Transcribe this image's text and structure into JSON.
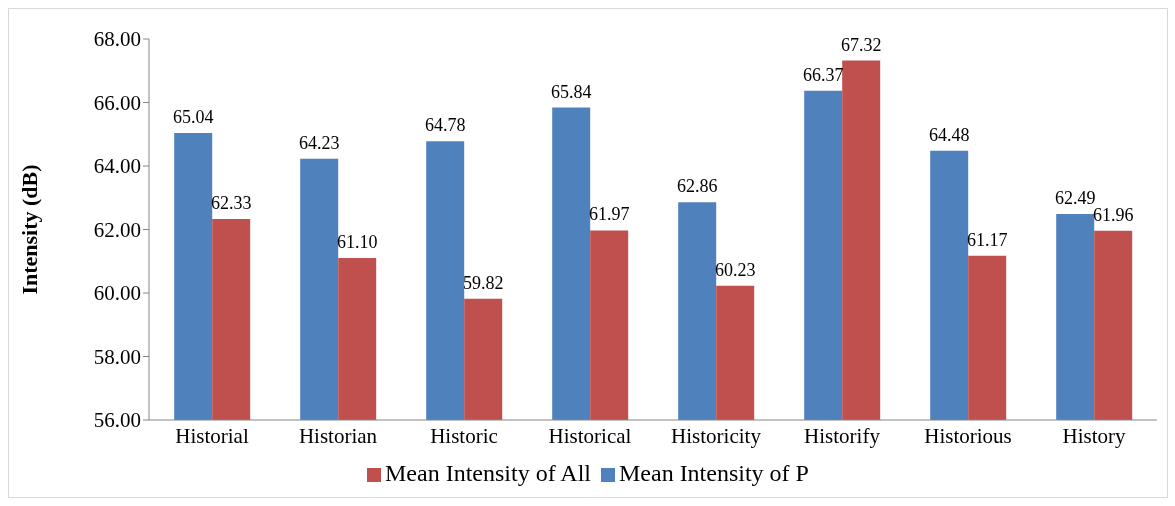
{
  "chart_data": {
    "type": "bar",
    "ylabel": "Intensity (dB)",
    "categories": [
      "Historial",
      "Historian",
      "Historic",
      "Historical",
      "Historicity",
      "Historify",
      "Historious",
      "History"
    ],
    "series": [
      {
        "name": "Mean Intensity of P",
        "color": "#4f81bd",
        "values": [
          65.04,
          64.23,
          64.78,
          65.84,
          62.86,
          66.37,
          64.48,
          62.49
        ],
        "value_labels": [
          "65.04",
          "64.23",
          "64.78",
          "65.84",
          "62.86",
          "66.37",
          "64.48",
          "62.49"
        ]
      },
      {
        "name": "Mean Intensity of All",
        "color": "#c0504d",
        "values": [
          62.33,
          61.1,
          59.82,
          61.97,
          60.23,
          67.32,
          61.17,
          61.96
        ],
        "value_labels": [
          "62.33",
          "61.10",
          "59.82",
          "61.97",
          "60.23",
          "67.32",
          "61.17",
          "61.96"
        ]
      }
    ],
    "ylim": [
      56,
      68
    ],
    "yticks": [
      {
        "value": 56,
        "label": "56.00"
      },
      {
        "value": 58,
        "label": "58.00"
      },
      {
        "value": 60,
        "label": "60.00"
      },
      {
        "value": 62,
        "label": "62.00"
      },
      {
        "value": 64,
        "label": "64.00"
      },
      {
        "value": 66,
        "label": "66.00"
      },
      {
        "value": 68,
        "label": "68.00"
      }
    ],
    "legend": "bottom"
  }
}
